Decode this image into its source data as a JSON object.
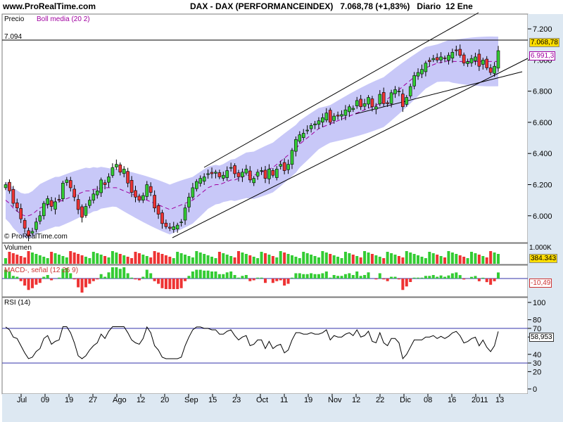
{
  "header": {
    "site": "www.ProRealTime.com",
    "title": "DAX - DAX (PERFORMANCEINDEX)   7.068,78 (+1,83%)   Diario  12 Ene"
  },
  "price_panel": {
    "label": "Precio",
    "bollinger_label": "Boll media (20 2)",
    "hline_label": "7.094",
    "watermark": "© ProRealTime.com",
    "last_price_badge": "7.068,78",
    "boll_middle_badge": "6.991,3",
    "y_ticks": [
      "7.200",
      "7.000",
      "6.800",
      "6.600",
      "6.400",
      "6.200",
      "6.000"
    ]
  },
  "volume_panel": {
    "label": "Volumen",
    "top_tick": "1.000K",
    "badge": "384.343"
  },
  "macd_panel": {
    "label": "MACD-, señal (12 26 9)",
    "badge": "-10,49"
  },
  "rsi_panel": {
    "label": "RSI (14)",
    "y_ticks": [
      "100",
      "80",
      "70",
      "60",
      "40",
      "30",
      "20",
      "0"
    ],
    "badge": "58,953"
  },
  "x_ticks": [
    "Jul",
    "09",
    "19",
    "27",
    "Ago",
    "12",
    "20",
    "Sep",
    "15",
    "23",
    "Oct",
    "11",
    "19",
    "Nov",
    "12",
    "22",
    "Dic",
    "08",
    "16",
    "2011",
    "13"
  ],
  "colors": {
    "bull": "#33cc33",
    "bear": "#ee3333",
    "band": "#c8c8f8",
    "mid": "#a000a0",
    "axis_bg": "#dde8f2",
    "grid_line": "#3333aa",
    "badge_price": "#ffdd00"
  },
  "chart_data": {
    "type": "candlestick",
    "title": "DAX - DAX (PERFORMANCEINDEX)",
    "series": [
      {
        "name": "Precio",
        "close": [
          6200,
          6160,
          6080,
          6050,
          5980,
          5920,
          5870,
          5900,
          5960,
          6000,
          6080,
          6110,
          6060,
          6090,
          6100,
          6210,
          6230,
          6180,
          6120,
          6040,
          5990,
          6060,
          6100,
          6140,
          6160,
          6230,
          6200,
          6250,
          6310,
          6330,
          6280,
          6300,
          6210,
          6150,
          6120,
          6100,
          6130,
          6200,
          6150,
          6050,
          6010,
          5950,
          5930,
          5920,
          5930,
          5940,
          5960,
          6050,
          6120,
          6180,
          6220,
          6240,
          6250,
          6270,
          6270,
          6280,
          6250,
          6260,
          6290,
          6310,
          6270,
          6250,
          6280,
          6300,
          6230,
          6240,
          6280,
          6290,
          6240,
          6300,
          6260,
          6300,
          6330,
          6290,
          6330,
          6420,
          6490,
          6520,
          6530,
          6550,
          6580,
          6590,
          6610,
          6630,
          6660,
          6600,
          6640,
          6640,
          6650,
          6680,
          6700,
          6690,
          6740,
          6700,
          6720,
          6760,
          6700,
          6700,
          6780,
          6720,
          6720,
          6790,
          6810,
          6800,
          6700,
          6760,
          6830,
          6900,
          6920,
          6940,
          6980,
          6990,
          7010,
          7000,
          7020,
          7010,
          7030,
          7050,
          7060,
          7030,
          6980,
          6990,
          7010,
          7020,
          6960,
          7000,
          6950,
          6920,
          6960,
          7060
        ]
      },
      {
        "name": "Boll media (20 2)",
        "close": [
          6100,
          6080,
          6050,
          6030,
          6010,
          6000,
          6000,
          6010,
          6030,
          6050,
          6060,
          6070,
          6080,
          6090,
          6090,
          6100,
          6110,
          6120,
          6130,
          6140,
          6150,
          6160,
          6160,
          6170,
          6170,
          6180,
          6180,
          6180,
          6180,
          6180,
          6170,
          6160,
          6150,
          6140,
          6130,
          6120,
          6110,
          6100,
          6090,
          6080,
          6070,
          6060,
          6050,
          6040,
          6050,
          6060,
          6070,
          6080,
          6090,
          6100,
          6120,
          6140,
          6160,
          6180,
          6190,
          6200,
          6200,
          6210,
          6220,
          6230,
          6230,
          6240,
          6250,
          6260,
          6260,
          6260,
          6270,
          6280,
          6290,
          6300,
          6310,
          6330,
          6350,
          6370,
          6390,
          6410,
          6430,
          6460,
          6480,
          6500,
          6520,
          6540,
          6560,
          6570,
          6580,
          6590,
          6600,
          6610,
          6620,
          6630,
          6640,
          6650,
          6660,
          6670,
          6680,
          6690,
          6700,
          6710,
          6720,
          6730,
          6750,
          6770,
          6790,
          6810,
          6830,
          6850,
          6870,
          6890,
          6910,
          6930,
          6950,
          6960,
          6970,
          6980,
          6985,
          6990,
          6995,
          6991
        ]
      }
    ],
    "ylim": [
      5850,
      7250
    ]
  }
}
